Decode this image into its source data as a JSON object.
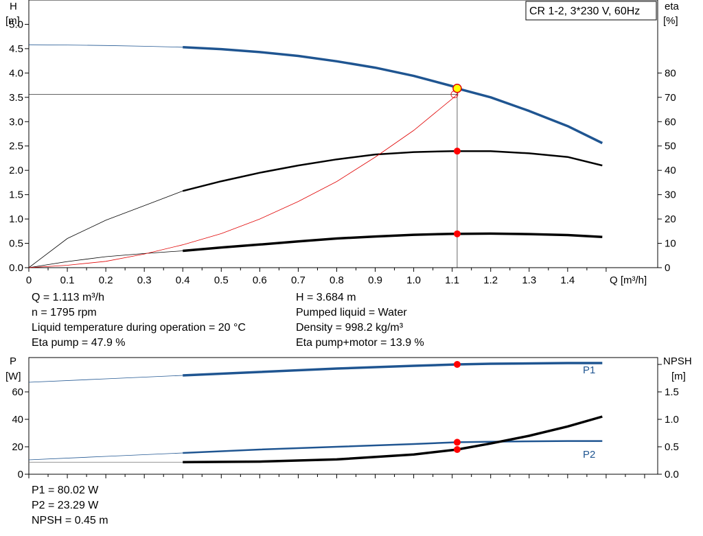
{
  "legend_box": "CR 1-2, 3*230 V, 60Hz",
  "top_chart": {
    "y_left_label": [
      "H",
      "[m]"
    ],
    "y_right_label": [
      "eta",
      "[%]"
    ],
    "x_label": "Q [m³/h]",
    "x_ticks": [
      "0",
      "0.1",
      "0.2",
      "0.3",
      "0.4",
      "0.5",
      "0.6",
      "0.7",
      "0.8",
      "0.9",
      "1.0",
      "1.1",
      "1.2",
      "1.3",
      "1.4"
    ],
    "y_left_ticks": [
      "0.0",
      "0.5",
      "1.0",
      "1.5",
      "2.0",
      "2.5",
      "3.0",
      "3.5",
      "4.0",
      "4.5",
      "5.0"
    ],
    "y_right_ticks": [
      "0",
      "10",
      "20",
      "30",
      "40",
      "50",
      "60",
      "70",
      "80"
    ]
  },
  "info_top": {
    "left": [
      "Q = 1.113 m³/h",
      "n = 1795 rpm",
      "Liquid temperature during operation = 20 °C",
      "Eta pump = 47.9 %"
    ],
    "right": [
      "H = 3.684 m",
      "Pumped liquid = Water",
      "Density = 998.2 kg/m³",
      "Eta pump+motor = 13.9 %"
    ]
  },
  "bottom_chart": {
    "y_left_label": [
      "P",
      "[W]"
    ],
    "y_right_label": [
      "NPSH",
      "[m]"
    ],
    "y_left_ticks": [
      "0",
      "20",
      "40",
      "60"
    ],
    "y_right_ticks": [
      "0.0",
      "0.5",
      "1.0",
      "1.5"
    ],
    "series_labels": [
      "P1",
      "P2"
    ]
  },
  "info_bottom": [
    "P1 = 80.02 W",
    "P2 = 23.29 W",
    "NPSH = 0.45 m"
  ],
  "colors": {
    "blue": "#1f5591",
    "red": "#e00000",
    "marker": "#ff0000",
    "op_marker": "#ffff00",
    "grid": "#999999"
  },
  "chart_data": [
    {
      "type": "line",
      "title": "CR 1-2, 3*230 V, 60Hz",
      "xlabel": "Q [m³/h]",
      "ylabel": "H [m]",
      "y2label": "eta [%]",
      "xlim": [
        0,
        1.6
      ],
      "ylim": [
        0,
        5.5
      ],
      "y2lim": [
        0,
        110
      ],
      "grid": true,
      "series": [
        {
          "name": "H",
          "axis": "left",
          "x": [
            0,
            0.1,
            0.2,
            0.3,
            0.4,
            0.5,
            0.6,
            0.7,
            0.8,
            0.9,
            1.0,
            1.1,
            1.113,
            1.2,
            1.3,
            1.4,
            1.49
          ],
          "y": [
            4.58,
            4.575,
            4.565,
            4.55,
            4.53,
            4.49,
            4.43,
            4.35,
            4.24,
            4.11,
            3.94,
            3.73,
            3.684,
            3.5,
            3.22,
            2.91,
            2.56
          ]
        },
        {
          "name": "eta_pump",
          "axis": "right",
          "x": [
            0,
            0.1,
            0.2,
            0.3,
            0.4,
            0.5,
            0.6,
            0.7,
            0.8,
            0.9,
            1.0,
            1.1,
            1.113,
            1.2,
            1.3,
            1.4,
            1.49
          ],
          "y": [
            0,
            12,
            19.5,
            25.5,
            31.5,
            35.5,
            39,
            42,
            44.5,
            46.5,
            47.5,
            47.9,
            47.9,
            47.9,
            47,
            45.5,
            42
          ]
        },
        {
          "name": "eta_total",
          "axis": "right",
          "x": [
            0,
            0.1,
            0.2,
            0.3,
            0.4,
            0.5,
            0.6,
            0.7,
            0.8,
            0.9,
            1.0,
            1.1,
            1.113,
            1.2,
            1.3,
            1.4,
            1.49
          ],
          "y": [
            0,
            2.5,
            4.5,
            5.8,
            6.9,
            8.3,
            9.5,
            10.8,
            12,
            12.8,
            13.5,
            13.9,
            13.9,
            14,
            13.8,
            13.4,
            12.6
          ]
        },
        {
          "name": "eta_red",
          "axis": "left",
          "x": [
            0,
            0.1,
            0.2,
            0.3,
            0.4,
            0.5,
            0.6,
            0.7,
            0.8,
            0.9,
            1.0,
            1.1,
            1.113
          ],
          "y": [
            0,
            0.05,
            0.13,
            0.28,
            0.47,
            0.7,
            1.0,
            1.36,
            1.77,
            2.27,
            2.82,
            3.47,
            3.56
          ]
        }
      ],
      "operating_point": {
        "x": 1.113,
        "y": 3.684,
        "eta_pump": 47.9,
        "eta_total": 13.9
      }
    },
    {
      "type": "line",
      "xlabel": "Q [m³/h]",
      "ylabel": "P [W]",
      "y2label": "NPSH [m]",
      "xlim": [
        0,
        1.6
      ],
      "ylim": [
        0,
        85
      ],
      "y2lim": [
        0,
        2.125
      ],
      "grid": true,
      "series": [
        {
          "name": "P1",
          "axis": "left",
          "x": [
            0,
            0.2,
            0.4,
            0.6,
            0.8,
            1.0,
            1.113,
            1.2,
            1.4,
            1.49
          ],
          "y": [
            67,
            69.5,
            72,
            74.5,
            77,
            79,
            80.02,
            80.5,
            81,
            81
          ]
        },
        {
          "name": "P2",
          "axis": "left",
          "x": [
            0,
            0.2,
            0.4,
            0.6,
            0.8,
            1.0,
            1.113,
            1.2,
            1.4,
            1.49
          ],
          "y": [
            10.5,
            13,
            15.5,
            18,
            20,
            22,
            23.29,
            23.7,
            24.2,
            24.2
          ]
        },
        {
          "name": "NPSH",
          "axis": "right",
          "x": [
            0,
            0.2,
            0.4,
            0.6,
            0.8,
            1.0,
            1.113,
            1.2,
            1.3,
            1.4,
            1.49
          ],
          "y": [
            0.22,
            0.22,
            0.22,
            0.23,
            0.27,
            0.36,
            0.45,
            0.56,
            0.7,
            0.87,
            1.05
          ]
        }
      ],
      "operating_point": {
        "x": 1.113,
        "P1": 80.02,
        "P2": 23.29,
        "NPSH": 0.45
      }
    }
  ]
}
